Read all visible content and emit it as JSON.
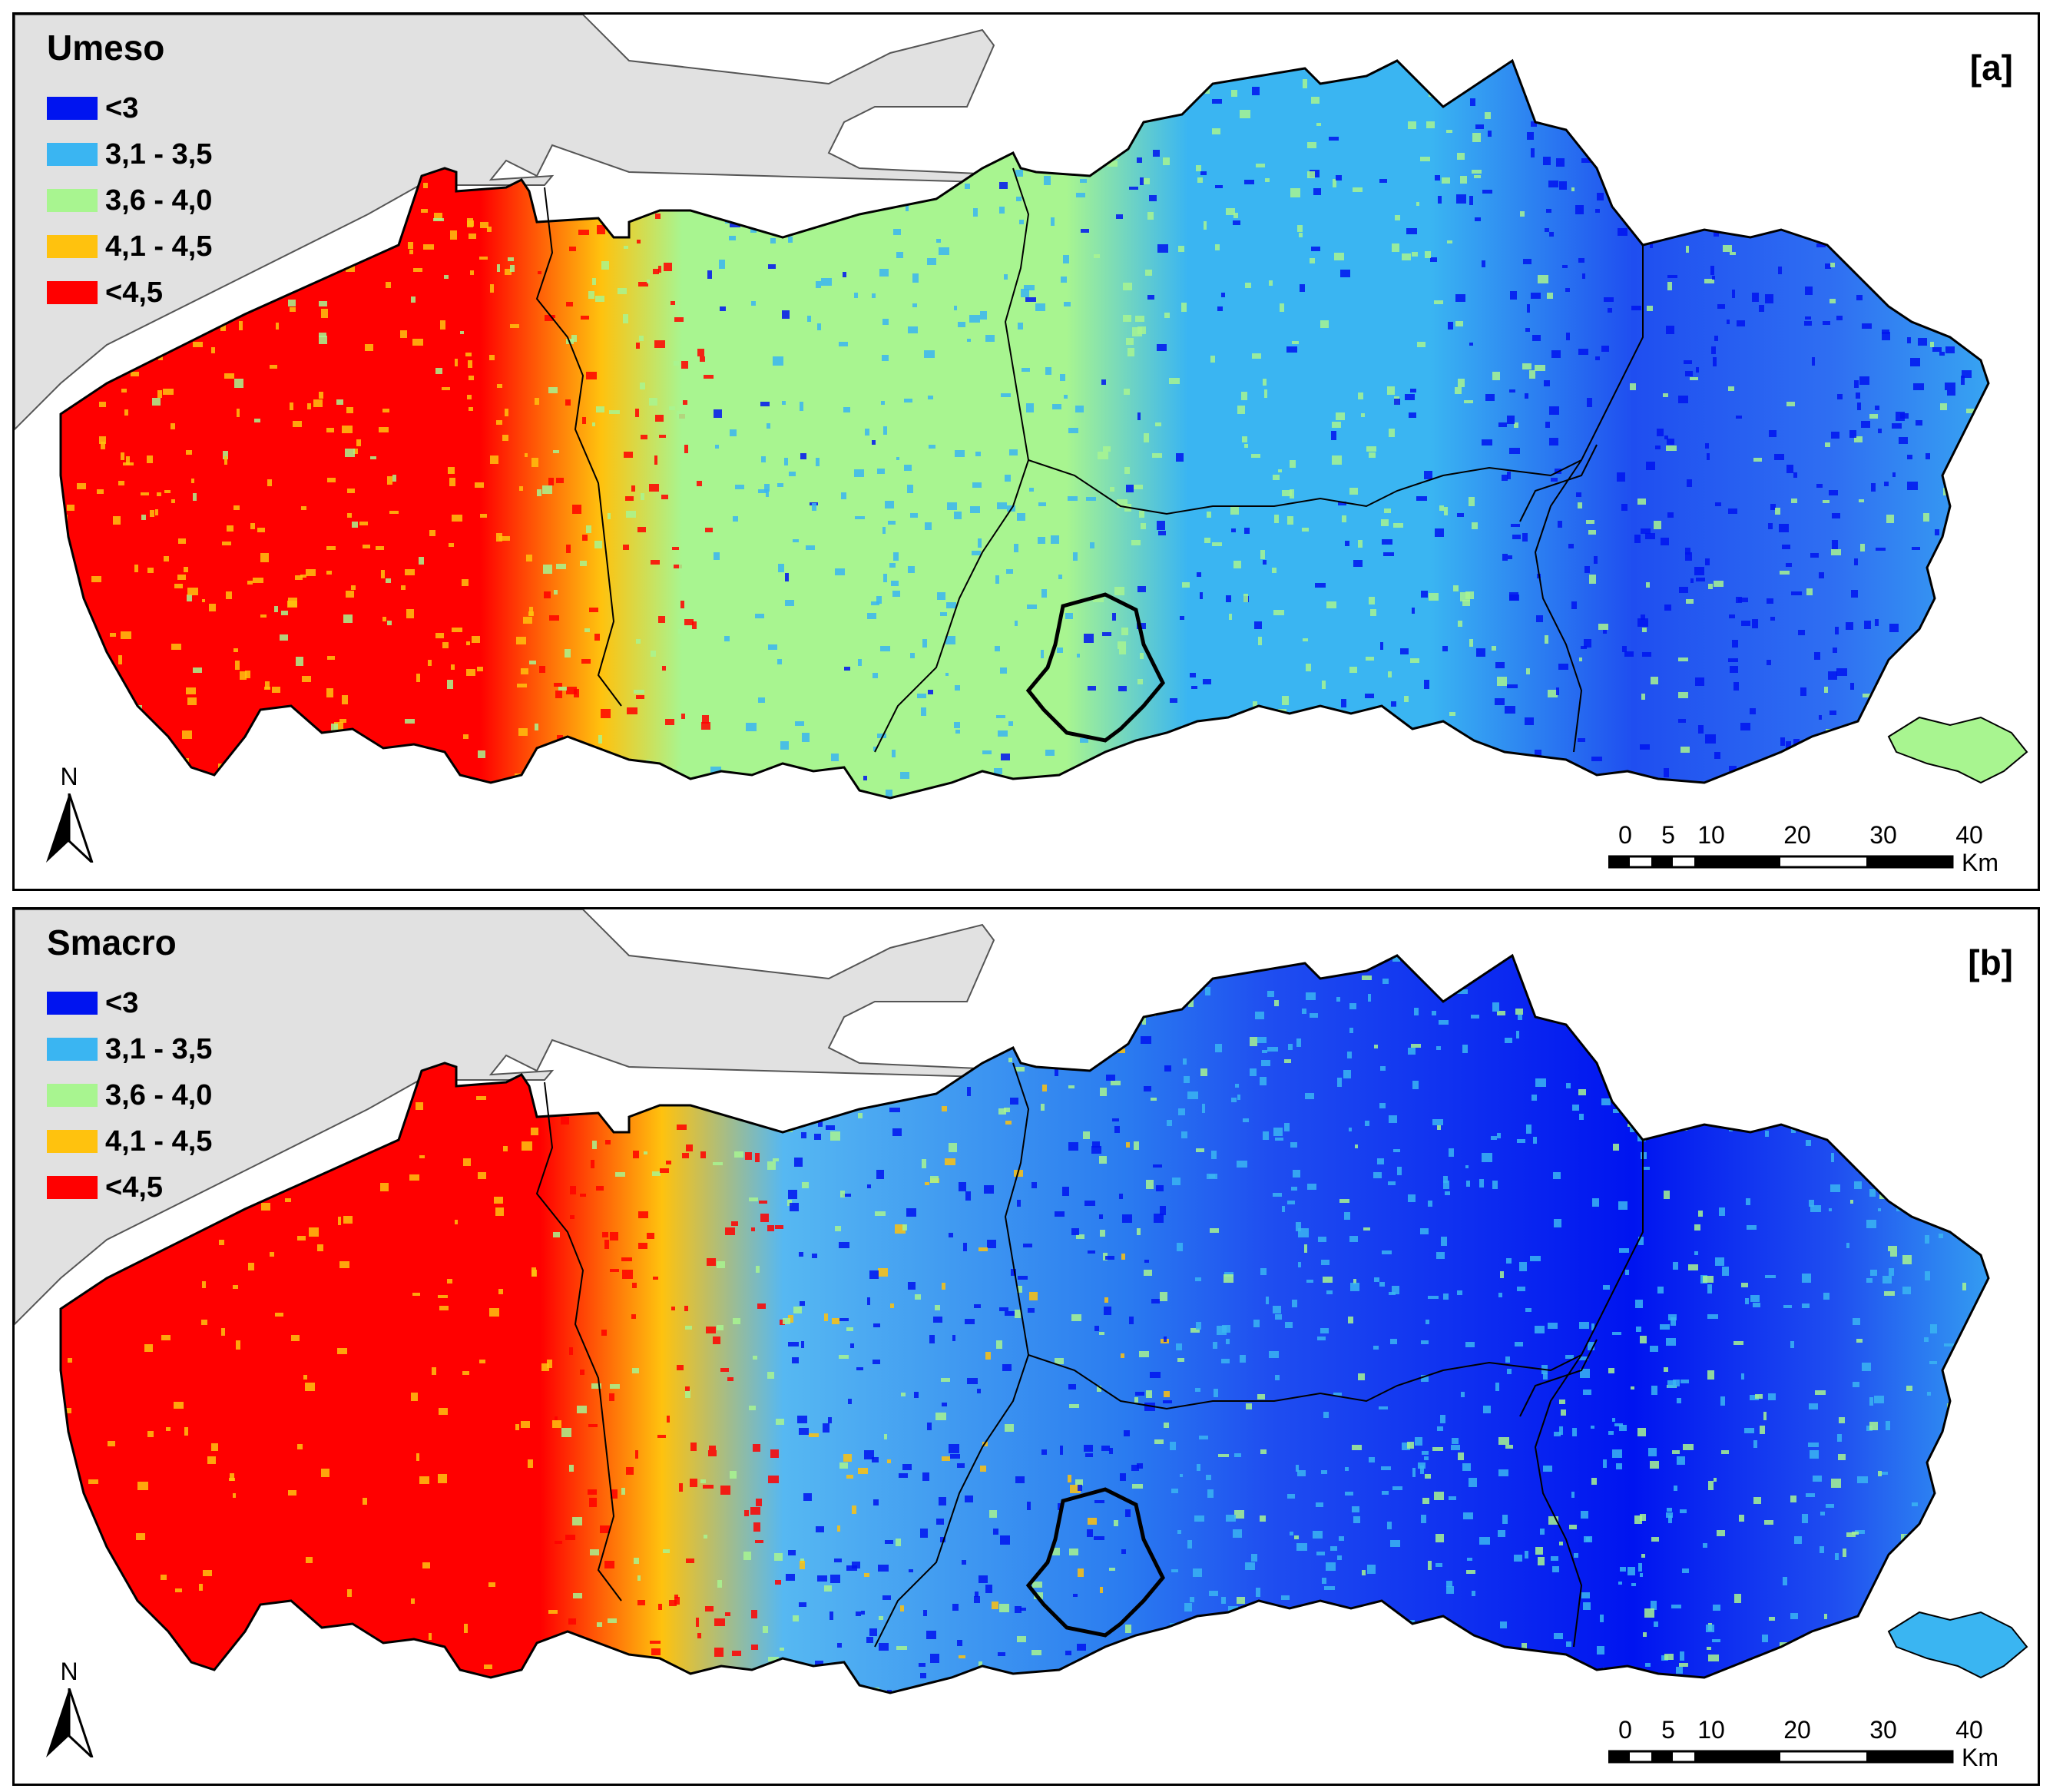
{
  "panels": [
    {
      "id": "a",
      "variable": "Umeso",
      "label": "[a]",
      "pattern": "umeso"
    },
    {
      "id": "b",
      "variable": "Smacro",
      "label": "[b]",
      "pattern": "smacro"
    }
  ],
  "legend": [
    {
      "label": "<3",
      "color": "#0014F0"
    },
    {
      "label": "3,1 - 3,5",
      "color": "#3AB5F2"
    },
    {
      "label": "3,6 - 4,0",
      "color": "#A8F590"
    },
    {
      "label": "4,1 - 4,5",
      "color": "#FFC20E"
    },
    {
      "label": "<4,5",
      "color": "#FF0000"
    }
  ],
  "colors": {
    "sea": "#E1E1E1",
    "boundary": "#000000"
  },
  "north_arrow": {
    "letter": "N",
    "icon": "north-arrow-icon"
  },
  "scalebar": {
    "ticks": [
      "0",
      "5",
      "10",
      "20",
      "30",
      "40"
    ],
    "tick_values": [
      0,
      5,
      10,
      20,
      30,
      40
    ],
    "unit": "Km"
  }
}
